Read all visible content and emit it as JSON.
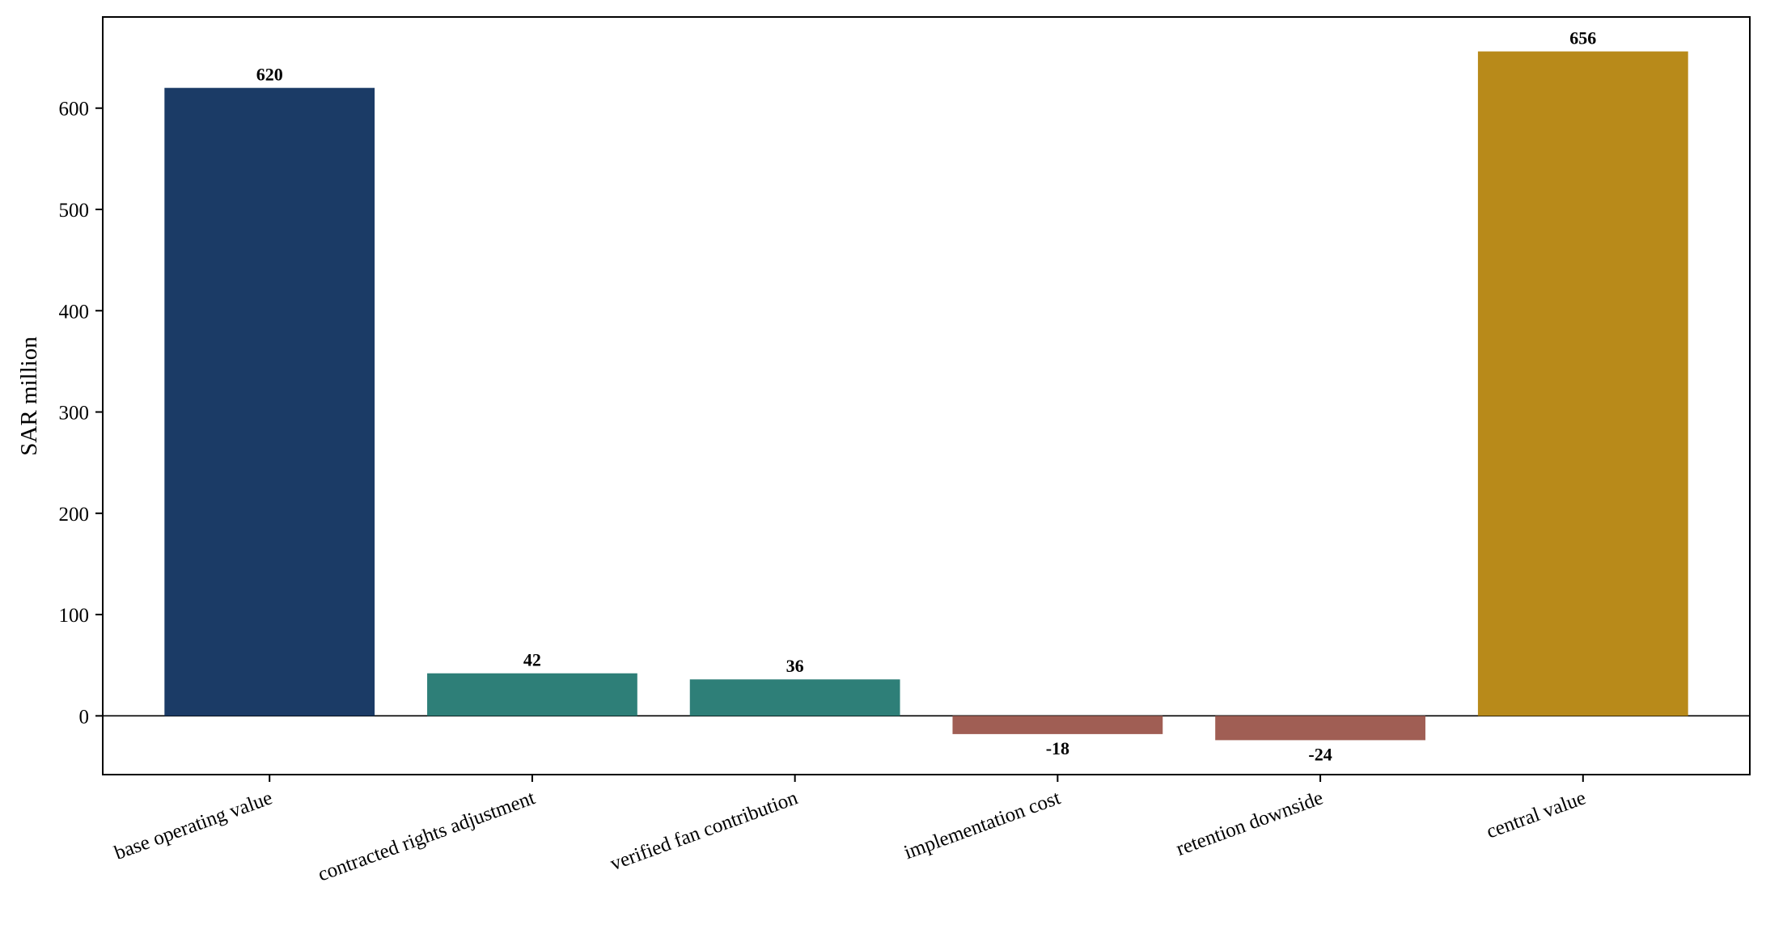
{
  "chart_data": {
    "type": "bar",
    "categories": [
      "base operating value",
      "contracted rights adjustment",
      "verified fan contribution",
      "implementation cost",
      "retention downside",
      "central value"
    ],
    "values": [
      620,
      42,
      36,
      -18,
      -24,
      656
    ],
    "value_labels": [
      "620",
      "42",
      "36",
      "-18",
      "-24",
      "656"
    ],
    "bar_colors": [
      "#1b3b66",
      "#2e7f78",
      "#2e7f78",
      "#a05e54",
      "#a05e54",
      "#b88a1a"
    ],
    "title": "",
    "xlabel": "",
    "ylabel": "SAR million",
    "ylim": [
      -58,
      690
    ],
    "yticks": [
      0,
      100,
      200,
      300,
      400,
      500,
      600
    ],
    "grid": false,
    "zero_line": true
  }
}
